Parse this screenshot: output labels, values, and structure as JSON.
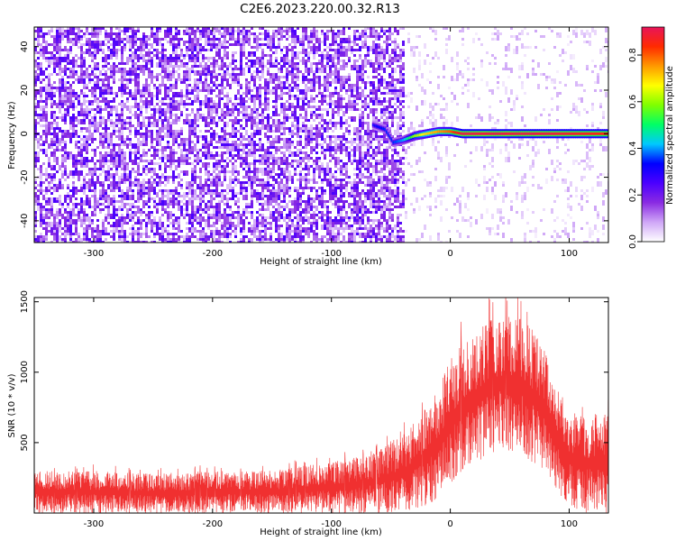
{
  "title": "C2E6.2023.220.00.32.R13",
  "chart_data": [
    {
      "type": "heatmap",
      "xlabel": "Height of straight line (km)",
      "ylabel": "Frequency (Hz)",
      "xlim": [
        -350,
        133
      ],
      "ylim": [
        -50,
        49
      ],
      "xticks": [
        -300,
        -200,
        -100,
        0,
        100
      ],
      "yticks": [
        -40,
        -20,
        0,
        20,
        40
      ],
      "colorbar": {
        "label": "Normalized spectral amplitude",
        "ticks": [
          0.0,
          0.2,
          0.4,
          0.6,
          0.8
        ],
        "range": [
          0,
          0.92
        ],
        "colors": [
          "#ffffff",
          "#cfa6f7",
          "#8a2be2",
          "#4b00ff",
          "#0000ff",
          "#00c8ff",
          "#00ff66",
          "#7fff00",
          "#ffff00",
          "#ff9900",
          "#ff2a00",
          "#e8145a"
        ]
      },
      "noise_band": {
        "x_range": [
          -350,
          -40
        ],
        "typical_amplitude": 0.15
      },
      "signal_track": [
        {
          "x": -65,
          "freq": 4,
          "amplitude": 0.3
        },
        {
          "x": -55,
          "freq": 2,
          "amplitude": 0.35
        },
        {
          "x": -48,
          "freq": -4,
          "amplitude": 0.35
        },
        {
          "x": -40,
          "freq": -3,
          "amplitude": 0.4
        },
        {
          "x": -30,
          "freq": -1,
          "amplitude": 0.6
        },
        {
          "x": -20,
          "freq": 0,
          "amplitude": 0.7
        },
        {
          "x": -10,
          "freq": 1,
          "amplitude": 0.75
        },
        {
          "x": 0,
          "freq": 1,
          "amplitude": 0.8
        },
        {
          "x": 10,
          "freq": 0,
          "amplitude": 0.9
        },
        {
          "x": 40,
          "freq": 0,
          "amplitude": 0.9
        },
        {
          "x": 80,
          "freq": 0,
          "amplitude": 0.9
        },
        {
          "x": 133,
          "freq": 0,
          "amplitude": 0.85
        }
      ]
    },
    {
      "type": "line",
      "xlabel": "Height of straight line (km)",
      "ylabel": "SNR (10 * v/v)",
      "xlim": [
        -350,
        133
      ],
      "ylim": [
        0,
        1530
      ],
      "xticks": [
        -300,
        -200,
        -100,
        0,
        100
      ],
      "yticks": [
        500,
        1000,
        1500
      ],
      "color": "#f03030",
      "envelope": {
        "x": [
          -350,
          -300,
          -250,
          -200,
          -150,
          -120,
          -100,
          -80,
          -60,
          -40,
          -20,
          -10,
          0,
          10,
          20,
          30,
          40,
          50,
          60,
          70,
          80,
          90,
          100,
          110,
          120,
          133
        ],
        "upper": [
          300,
          300,
          280,
          300,
          300,
          340,
          360,
          400,
          460,
          560,
          750,
          900,
          1100,
          1200,
          1260,
          1350,
          1400,
          1420,
          1380,
          1300,
          1150,
          900,
          750,
          700,
          700,
          720
        ],
        "lower": [
          0,
          0,
          0,
          0,
          0,
          0,
          0,
          0,
          0,
          0,
          50,
          100,
          200,
          300,
          350,
          400,
          420,
          430,
          400,
          350,
          300,
          150,
          50,
          0,
          0,
          0
        ]
      }
    }
  ]
}
